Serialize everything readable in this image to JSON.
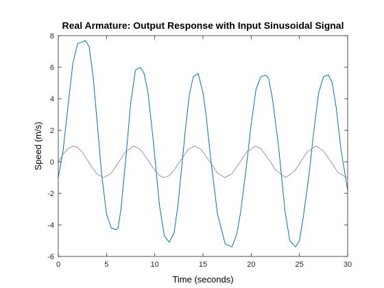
{
  "chart_data": {
    "type": "line",
    "title": "Real Armature: Output Response with Input Sinusoidal Signal",
    "xlabel": "Time (seconds)",
    "ylabel": "Speed (m/s)",
    "xlim": [
      0,
      30
    ],
    "ylim": [
      -6,
      8
    ],
    "xticks": [
      0,
      5,
      10,
      15,
      20,
      25,
      30
    ],
    "yticks": [
      -6,
      -4,
      -2,
      0,
      2,
      4,
      6,
      8
    ],
    "grid": false,
    "series": [
      {
        "color": "#0072BD",
        "x": [
          0,
          0.5,
          1,
          1.5,
          2,
          2.5,
          2.8,
          3.2,
          3.6,
          4,
          4.5,
          5,
          5.5,
          6,
          6.2,
          6.5,
          7,
          7.5,
          8,
          8.5,
          8.9,
          9.3,
          9.8,
          10.5,
          11,
          11.5,
          12,
          12.4,
          12.8,
          13.2,
          13.6,
          14,
          14.5,
          15,
          15.3,
          15.8,
          16.5,
          17.3,
          18,
          18.5,
          18.9,
          19.5,
          20,
          20.5,
          21,
          21.5,
          21.8,
          22.2,
          22.8,
          23.5,
          24,
          24.6,
          25,
          25.4,
          26,
          26.5,
          27,
          27.5,
          28,
          28.4,
          28.8,
          29.3,
          30
        ],
        "y": [
          -1.0,
          0.7,
          3.5,
          6.2,
          7.5,
          7.6,
          7.7,
          7.3,
          5.5,
          2.7,
          -0.8,
          -3.3,
          -4.2,
          -4.3,
          -4.2,
          -3.0,
          0.2,
          3.7,
          5.8,
          6.0,
          5.6,
          4.4,
          1.6,
          -2.8,
          -4.7,
          -5.1,
          -4.5,
          -2.8,
          -0.3,
          2.2,
          4.3,
          5.4,
          5.6,
          4.4,
          3.1,
          0.2,
          -3.3,
          -5.2,
          -5.4,
          -4.6,
          -3.2,
          -0.3,
          2.4,
          4.6,
          5.4,
          5.5,
          5.3,
          4.0,
          1.2,
          -3.1,
          -5.0,
          -5.4,
          -5.0,
          -3.5,
          -0.8,
          2.0,
          4.4,
          5.4,
          5.5,
          5.0,
          3.5,
          0.8,
          -1.8
        ]
      },
      {
        "color": "#808080",
        "x": [
          0,
          0.5,
          1,
          1.57,
          2,
          2.5,
          3,
          3.5,
          4,
          4.71,
          5.5,
          6.28,
          7,
          7.85,
          8.5,
          9.42,
          10,
          10.5,
          10.99,
          11.5,
          12,
          12.57,
          13.5,
          14.14,
          14.8,
          15.71,
          16.5,
          17.28,
          18,
          18.85,
          19.5,
          20.42,
          21,
          21.99,
          22.5,
          23.56,
          24.5,
          25.13,
          25.8,
          26.7,
          27.5,
          28.27,
          29,
          29.85,
          30
        ],
        "y": [
          0,
          0.48,
          0.84,
          1.0,
          0.91,
          0.6,
          0.14,
          -0.35,
          -0.76,
          -1.0,
          -0.71,
          0,
          0.66,
          1.0,
          0.8,
          0,
          -0.54,
          -0.88,
          -1.0,
          -0.88,
          -0.54,
          0,
          0.8,
          1.0,
          0.8,
          0,
          -0.71,
          -1.0,
          -0.75,
          0,
          0.6,
          1.0,
          0.84,
          0,
          -0.49,
          -1.0,
          -0.59,
          0,
          0.62,
          1.0,
          0.68,
          0,
          -0.66,
          -1.0,
          -0.99
        ]
      }
    ]
  }
}
